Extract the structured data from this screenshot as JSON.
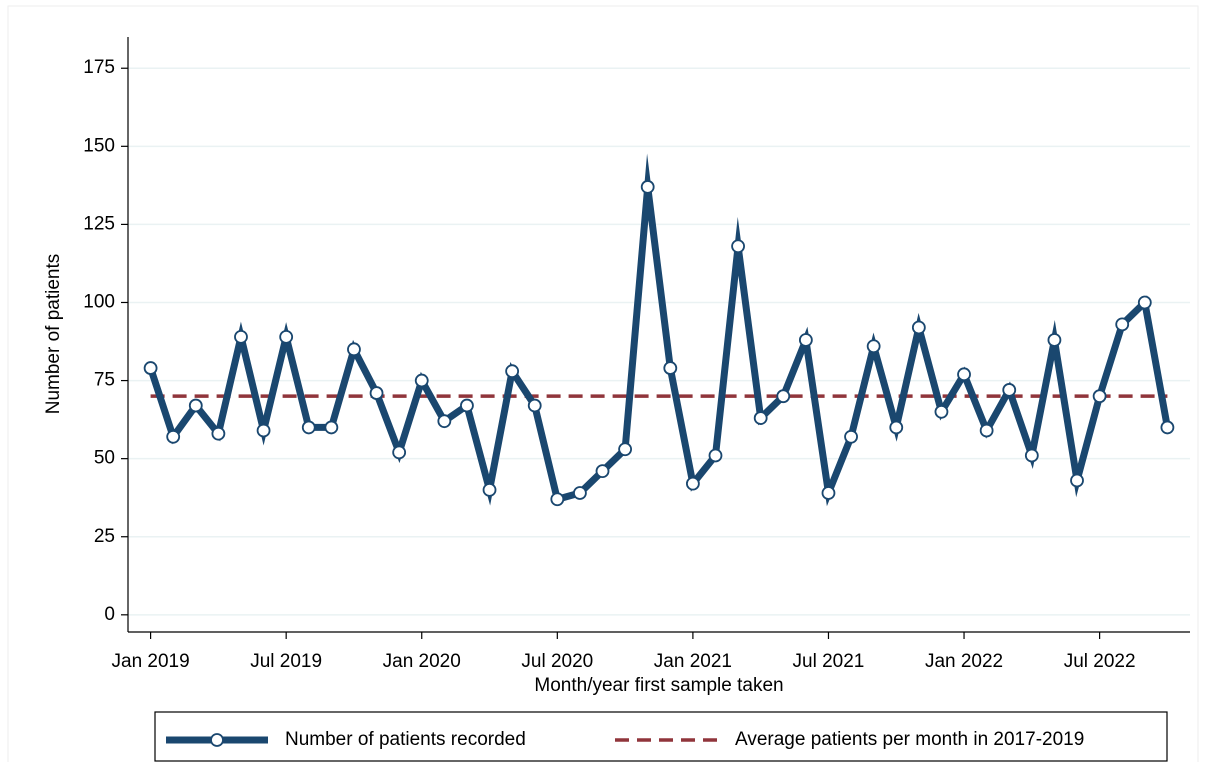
{
  "chart_data": {
    "type": "line",
    "y_label": "Number of patients",
    "x_label": "Month/year first sample taken",
    "x": [
      "2019-01",
      "2019-02",
      "2019-03",
      "2019-04",
      "2019-05",
      "2019-06",
      "2019-07",
      "2019-08",
      "2019-09",
      "2019-10",
      "2019-11",
      "2019-12",
      "2020-01",
      "2020-02",
      "2020-03",
      "2020-04",
      "2020-05",
      "2020-06",
      "2020-07",
      "2020-08",
      "2020-09",
      "2020-10",
      "2020-11",
      "2020-12",
      "2021-01",
      "2021-02",
      "2021-03",
      "2021-04",
      "2021-05",
      "2021-06",
      "2021-07",
      "2021-08",
      "2021-09",
      "2021-10",
      "2021-11",
      "2021-12",
      "2022-01",
      "2022-02",
      "2022-03",
      "2022-04",
      "2022-05",
      "2022-06",
      "2022-07",
      "2022-08",
      "2022-09",
      "2022-10"
    ],
    "series": [
      {
        "name": "Number of patients recorded",
        "color": "#1a476f",
        "values": [
          79,
          57,
          67,
          58,
          89,
          59,
          89,
          60,
          60,
          85,
          71,
          52,
          75,
          62,
          67,
          40,
          78,
          67,
          37,
          39,
          46,
          53,
          137,
          79,
          42,
          51,
          118,
          63,
          70,
          88,
          39,
          57,
          86,
          60,
          92,
          65,
          77,
          59,
          72,
          51,
          88,
          43,
          70,
          93,
          100,
          60
        ]
      }
    ],
    "reference_lines": [
      {
        "name": "Average patients per month in 2017-2019",
        "value": 70,
        "color": "#90353b",
        "style": "dashed"
      }
    ],
    "xlim": [
      "2018-12",
      "2022-11"
    ],
    "xticks": [
      {
        "value": "2019-01",
        "label": "Jan 2019"
      },
      {
        "value": "2019-07",
        "label": "Jul 2019"
      },
      {
        "value": "2020-01",
        "label": "Jan 2020"
      },
      {
        "value": "2020-07",
        "label": "Jul 2020"
      },
      {
        "value": "2021-01",
        "label": "Jan 2021"
      },
      {
        "value": "2021-07",
        "label": "Jul 2021"
      },
      {
        "value": "2022-01",
        "label": "Jan 2022"
      },
      {
        "value": "2022-07",
        "label": "Jul 2022"
      }
    ],
    "ylim": [
      -5.5,
      185
    ],
    "yticks": [
      0,
      25,
      50,
      75,
      100,
      125,
      150,
      175
    ],
    "grid": true,
    "legend": "bottom"
  }
}
